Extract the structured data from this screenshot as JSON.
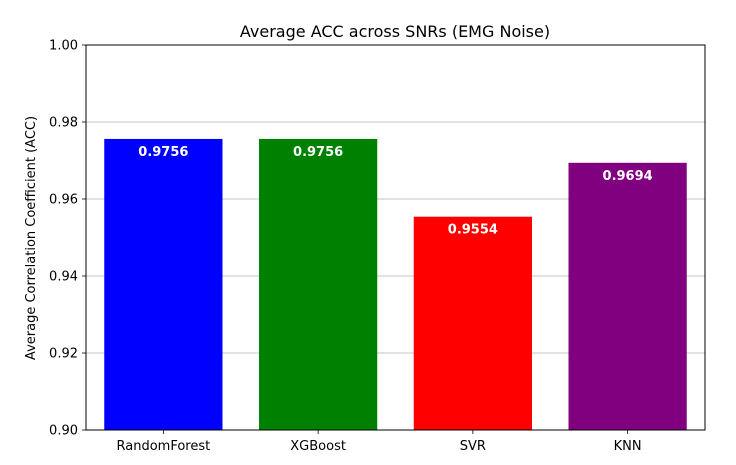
{
  "chart_data": {
    "type": "bar",
    "title": "Average ACC across SNRs (EMG Noise)",
    "xlabel": "",
    "ylabel": "Average Correlation Coefficient (ACC)",
    "categories": [
      "RandomForest",
      "XGBoost",
      "SVR",
      "KNN"
    ],
    "values": [
      0.9756,
      0.9756,
      0.9554,
      0.9694
    ],
    "value_labels": [
      "0.9756",
      "0.9756",
      "0.9554",
      "0.9694"
    ],
    "colors": [
      "#0000ff",
      "#008000",
      "#ff0000",
      "#800080"
    ],
    "ylim": [
      0.9,
      1.0
    ],
    "yticks": [
      0.9,
      0.92,
      0.94,
      0.96,
      0.98,
      1.0
    ],
    "ytick_labels": [
      "0.90",
      "0.92",
      "0.94",
      "0.96",
      "0.98",
      "1.00"
    ],
    "grid": "y-axis only",
    "legend": "none"
  }
}
